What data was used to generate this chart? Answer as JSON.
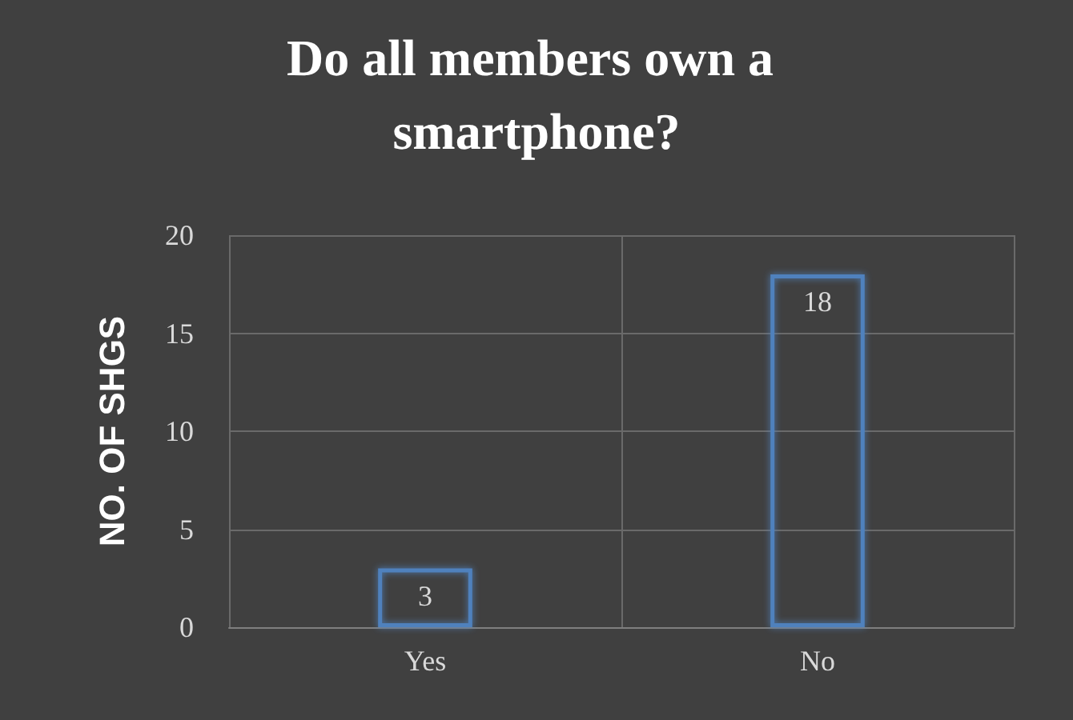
{
  "chart_data": {
    "type": "bar",
    "title": "Do all members own a smartphone?",
    "ylabel": "NO. OF SHGS",
    "categories": [
      "Yes",
      "No"
    ],
    "values": [
      3,
      18
    ],
    "color": "#4f81bd",
    "ylim": [
      0,
      20
    ],
    "yticks": [
      0,
      5,
      10,
      15,
      20
    ],
    "grid": true,
    "data_labels": true
  }
}
